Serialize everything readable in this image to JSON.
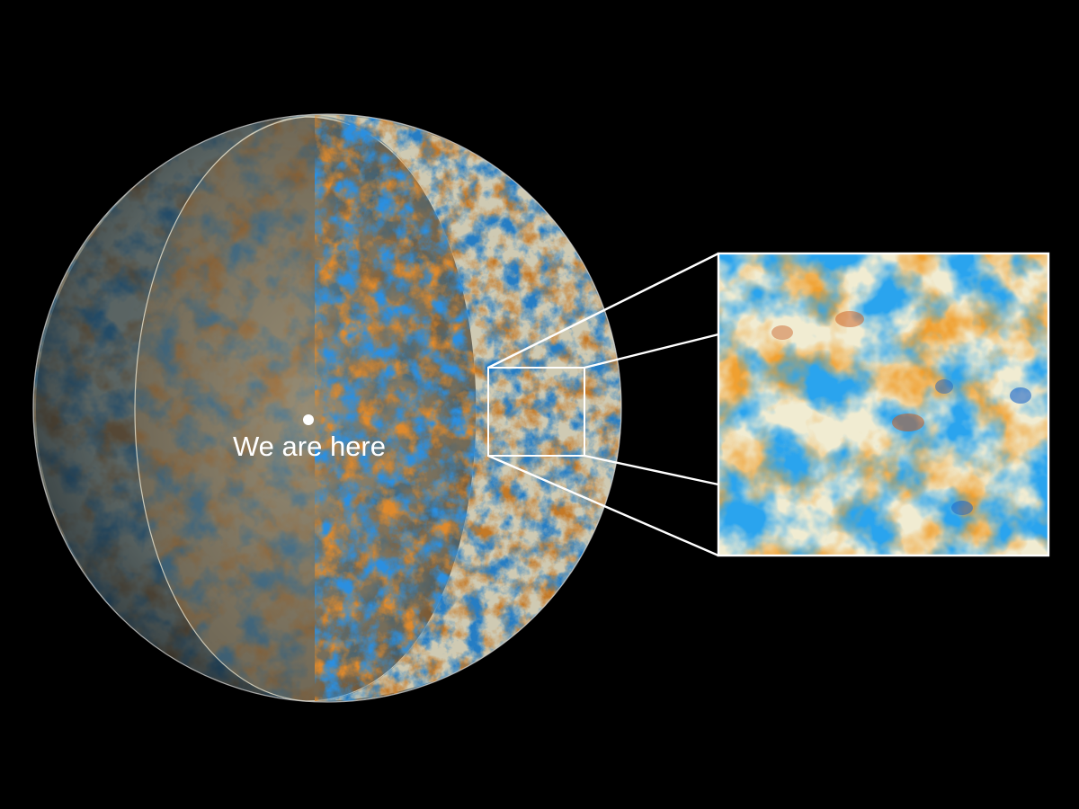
{
  "observer": {
    "label": "We are here"
  },
  "colors": {
    "background": "#000000",
    "cold_spot": "#2f8fd6",
    "hot_spot": "#d9822b",
    "neutral": "#e8e4c9",
    "outline": "#ffffff"
  },
  "elements": {
    "sphere": "cmb-sphere",
    "cutaway": "cutaway-hemisphere",
    "inset": "zoom-inset"
  }
}
